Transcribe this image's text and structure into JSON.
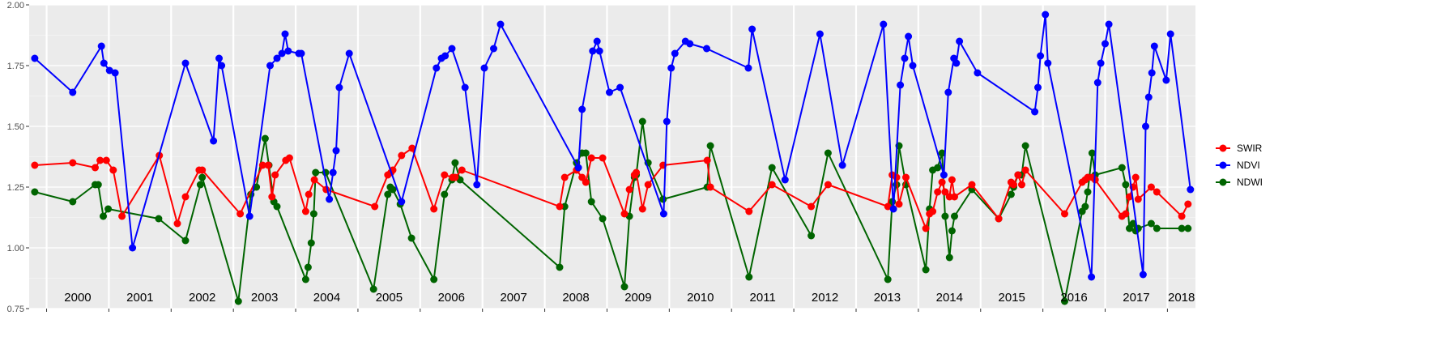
{
  "chart_data": {
    "type": "line",
    "title": "",
    "xlabel": "",
    "ylabel": "",
    "ylim": [
      0.75,
      2.0
    ],
    "yticks": [
      "0.75",
      "1.00",
      "1.25",
      "1.50",
      "1.75",
      "2.00"
    ],
    "xlim": [
      1999.72,
      2018.45
    ],
    "years": [
      "2000",
      "2001",
      "2002",
      "2003",
      "2004",
      "2005",
      "2006",
      "2007",
      "2008",
      "2009",
      "2010",
      "2011",
      "2012",
      "2013",
      "2014",
      "2015",
      "2016",
      "2017",
      "2018"
    ],
    "grid": true,
    "legend_position": "right",
    "series": [
      {
        "name": "SWIR",
        "color": "#ff0000",
        "x": [
          1999.81,
          2000.42,
          2000.78,
          2000.86,
          2000.96,
          2001.07,
          2001.21,
          2001.81,
          2002.1,
          2002.23,
          2002.45,
          2002.5,
          2003.11,
          2003.47,
          2003.56,
          2003.62,
          2003.67,
          2003.84,
          2003.9,
          2004.16,
          2004.21,
          2004.3,
          2004.49,
          2005.27,
          2005.48,
          2005.53,
          2005.56,
          2005.7,
          2005.87,
          2006.22,
          2006.39,
          2006.52,
          2006.56,
          2006.67,
          2008.24,
          2008.32,
          2008.51,
          2008.6,
          2008.66,
          2008.75,
          2008.93,
          2009.28,
          2009.36,
          2009.44,
          2009.47,
          2009.57,
          2009.66,
          2009.9,
          2010.61,
          2010.66,
          2011.28,
          2011.65,
          2012.28,
          2012.55,
          2013.51,
          2013.58,
          2013.65,
          2013.69,
          2013.8,
          2014.12,
          2014.18,
          2014.23,
          2014.31,
          2014.38,
          2014.43,
          2014.5,
          2014.54,
          2014.58,
          2014.86,
          2015.29,
          2015.49,
          2015.53,
          2015.6,
          2015.66,
          2015.72,
          2016.35,
          2016.63,
          2016.68,
          2016.72,
          2016.79,
          2016.84,
          2017.27,
          2017.33,
          2017.39,
          2017.45,
          2017.49,
          2017.53,
          2017.74,
          2017.83,
          2018.23,
          2018.33
        ],
        "values": [
          1.34,
          1.35,
          1.33,
          1.36,
          1.36,
          1.32,
          1.13,
          1.38,
          1.1,
          1.21,
          1.32,
          1.32,
          1.14,
          1.34,
          1.34,
          1.21,
          1.3,
          1.36,
          1.37,
          1.15,
          1.22,
          1.28,
          1.24,
          1.17,
          1.3,
          1.31,
          1.32,
          1.38,
          1.41,
          1.16,
          1.3,
          1.29,
          1.29,
          1.32,
          1.17,
          1.29,
          1.32,
          1.29,
          1.27,
          1.37,
          1.37,
          1.14,
          1.24,
          1.3,
          1.31,
          1.16,
          1.26,
          1.34,
          1.36,
          1.25,
          1.15,
          1.26,
          1.17,
          1.26,
          1.17,
          1.3,
          1.29,
          1.18,
          1.29,
          1.08,
          1.14,
          1.15,
          1.23,
          1.27,
          1.23,
          1.21,
          1.28,
          1.21,
          1.26,
          1.12,
          1.27,
          1.26,
          1.3,
          1.26,
          1.32,
          1.14,
          1.27,
          1.28,
          1.29,
          1.29,
          1.28,
          1.13,
          1.14,
          1.21,
          1.25,
          1.29,
          1.2,
          1.25,
          1.23,
          1.13,
          1.18
        ]
      },
      {
        "name": "NDVI",
        "color": "#0000ff",
        "x": [
          1999.81,
          2000.42,
          2000.88,
          2000.92,
          2001.01,
          2001.1,
          2001.38,
          2002.23,
          2002.68,
          2002.77,
          2002.81,
          2003.26,
          2003.59,
          2003.7,
          2003.78,
          2003.83,
          2003.88,
          2004.05,
          2004.09,
          2004.54,
          2004.6,
          2004.65,
          2004.7,
          2004.86,
          2005.7,
          2006.26,
          2006.34,
          2006.4,
          2006.51,
          2006.72,
          2006.91,
          2007.03,
          2007.18,
          2007.29,
          2008.54,
          2008.6,
          2008.77,
          2008.84,
          2008.88,
          2009.04,
          2009.21,
          2009.91,
          2009.96,
          2010.03,
          2010.09,
          2010.26,
          2010.33,
          2010.6,
          2011.27,
          2011.33,
          2011.86,
          2012.42,
          2012.78,
          2013.44,
          2013.6,
          2013.71,
          2013.78,
          2013.84,
          2013.91,
          2014.41,
          2014.48,
          2014.57,
          2014.61,
          2014.66,
          2014.95,
          2015.87,
          2015.92,
          2015.96,
          2016.04,
          2016.08,
          2016.78,
          2016.88,
          2016.93,
          2017.0,
          2017.06,
          2017.61,
          2017.65,
          2017.7,
          2017.75,
          2017.79,
          2017.98,
          2018.05,
          2018.37
        ],
        "values": [
          1.78,
          1.64,
          1.83,
          1.76,
          1.73,
          1.72,
          1.0,
          1.76,
          1.44,
          1.78,
          1.75,
          1.13,
          1.75,
          1.78,
          1.8,
          1.88,
          1.81,
          1.8,
          1.8,
          1.2,
          1.31,
          1.4,
          1.66,
          1.8,
          1.19,
          1.74,
          1.78,
          1.79,
          1.82,
          1.66,
          1.26,
          1.74,
          1.82,
          1.92,
          1.33,
          1.57,
          1.81,
          1.85,
          1.81,
          1.64,
          1.66,
          1.14,
          1.52,
          1.74,
          1.8,
          1.85,
          1.84,
          1.82,
          1.74,
          1.9,
          1.28,
          1.88,
          1.34,
          1.92,
          1.16,
          1.67,
          1.78,
          1.87,
          1.75,
          1.3,
          1.64,
          1.78,
          1.76,
          1.85,
          1.72,
          1.56,
          1.66,
          1.79,
          1.96,
          1.76,
          0.88,
          1.68,
          1.76,
          1.84,
          1.92,
          0.89,
          1.5,
          1.62,
          1.72,
          1.83,
          1.69,
          1.88,
          1.24
        ]
      },
      {
        "name": "NDWI",
        "color": "#006400",
        "x": [
          1999.81,
          2000.42,
          2000.78,
          2000.83,
          2000.91,
          2000.99,
          2001.8,
          2002.23,
          2002.47,
          2002.5,
          2003.08,
          2003.28,
          2003.37,
          2003.51,
          2003.57,
          2003.65,
          2003.7,
          2004.16,
          2004.2,
          2004.25,
          2004.29,
          2004.32,
          2004.48,
          2005.25,
          2005.48,
          2005.52,
          2005.56,
          2005.68,
          2005.86,
          2006.22,
          2006.39,
          2006.51,
          2006.56,
          2006.64,
          2008.24,
          2008.32,
          2008.51,
          2008.6,
          2008.66,
          2008.75,
          2008.93,
          2009.28,
          2009.36,
          2009.44,
          2009.47,
          2009.57,
          2009.66,
          2009.9,
          2010.61,
          2010.66,
          2011.28,
          2011.65,
          2012.28,
          2012.55,
          2013.51,
          2013.58,
          2013.65,
          2013.69,
          2013.8,
          2014.12,
          2014.18,
          2014.23,
          2014.31,
          2014.38,
          2014.43,
          2014.5,
          2014.54,
          2014.58,
          2014.86,
          2015.29,
          2015.49,
          2015.53,
          2015.6,
          2015.66,
          2015.72,
          2016.35,
          2016.63,
          2016.68,
          2016.72,
          2016.79,
          2016.84,
          2017.27,
          2017.33,
          2017.39,
          2017.45,
          2017.49,
          2017.53,
          2017.74,
          2017.83,
          2018.23,
          2018.33
        ],
        "values": [
          1.23,
          1.19,
          1.26,
          1.26,
          1.13,
          1.16,
          1.12,
          1.03,
          1.26,
          1.29,
          0.78,
          1.22,
          1.25,
          1.45,
          1.34,
          1.19,
          1.17,
          0.87,
          0.92,
          1.02,
          1.14,
          1.31,
          1.31,
          0.83,
          1.22,
          1.25,
          1.24,
          1.18,
          1.04,
          0.87,
          1.22,
          1.28,
          1.35,
          1.28,
          0.92,
          1.17,
          1.35,
          1.39,
          1.39,
          1.19,
          1.12,
          0.84,
          1.13,
          1.29,
          1.3,
          1.52,
          1.35,
          1.2,
          1.25,
          1.42,
          0.88,
          1.33,
          1.05,
          1.39,
          0.87,
          1.19,
          1.26,
          1.42,
          1.26,
          0.91,
          1.16,
          1.32,
          1.33,
          1.39,
          1.13,
          0.96,
          1.07,
          1.13,
          1.24,
          1.12,
          1.22,
          1.25,
          1.3,
          1.3,
          1.42,
          0.78,
          1.15,
          1.17,
          1.23,
          1.39,
          1.3,
          1.33,
          1.26,
          1.08,
          1.1,
          1.07,
          1.08,
          1.1,
          1.08,
          1.08,
          1.08
        ]
      }
    ]
  }
}
